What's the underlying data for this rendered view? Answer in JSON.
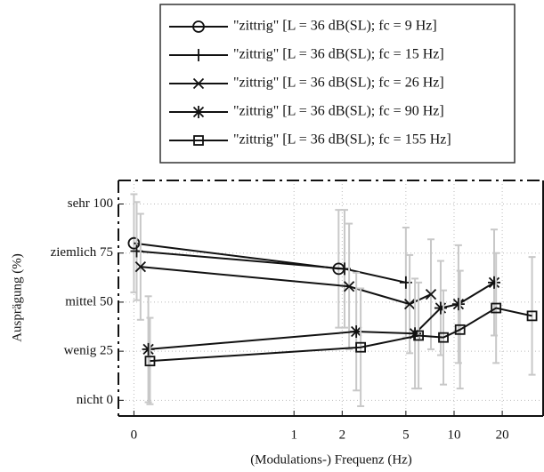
{
  "chart_data": {
    "type": "line",
    "y_label": "Ausprägung (%)",
    "x_label": "(Modulations-) Frequenz (Hz)",
    "log_x": true,
    "grid": true,
    "xlim": [
      0.08,
      36
    ],
    "xticks": [
      {
        "value": 0.1,
        "label": "0"
      },
      1,
      2,
      5,
      10,
      20
    ],
    "ylim": [
      -8,
      112
    ],
    "yticks": [
      {
        "value": 100,
        "label": "sehr 100"
      },
      {
        "value": 75,
        "label": "ziemlich 75"
      },
      {
        "value": 50,
        "label": "mittel 50"
      },
      {
        "value": 25,
        "label": "wenig 25"
      },
      {
        "value": 0,
        "label": "nicht 0"
      }
    ],
    "series": [
      {
        "name": "\"zittrig\" [L = 36 dB(SL); fc = 9 Hz]",
        "marker": "circle",
        "color": "#111111",
        "x": [
          0.1,
          1.9
        ],
        "values": [
          80,
          67
        ],
        "errors": [
          25,
          30
        ]
      },
      {
        "name": "\"zittrig\" [L = 36 dB(SL); fc = 15 Hz]",
        "marker": "plus",
        "color": "#111111",
        "x": [
          0.104,
          2.07,
          5.0
        ],
        "values": [
          76,
          67,
          60
        ],
        "errors": [
          25,
          30,
          28
        ]
      },
      {
        "name": "\"zittrig\" [L = 36 dB(SL); fc = 26 Hz]",
        "marker": "x",
        "color": "#111111",
        "x": [
          0.11,
          2.21,
          5.28,
          7.17
        ],
        "values": [
          68,
          58,
          49,
          54
        ],
        "errors": [
          27,
          32,
          25,
          28
        ]
      },
      {
        "name": "\"zittrig\" [L = 36 dB(SL); fc = 90 Hz]",
        "marker": "star",
        "color": "#111111",
        "x": [
          0.123,
          2.45,
          5.7,
          8.25,
          10.65,
          17.8
        ],
        "values": [
          26,
          35,
          34,
          47,
          49,
          60
        ],
        "errors": [
          27,
          30,
          28,
          24,
          30,
          27
        ]
      },
      {
        "name": "\"zittrig\" [L = 36 dB(SL); fc = 155 Hz]",
        "marker": "square",
        "color": "#111111",
        "x": [
          0.126,
          2.61,
          6.0,
          8.58,
          10.9,
          18.3,
          30.7
        ],
        "values": [
          20,
          27,
          33,
          32,
          36,
          47,
          43
        ],
        "errors": [
          22,
          30,
          27,
          24,
          30,
          28,
          30
        ]
      }
    ]
  }
}
